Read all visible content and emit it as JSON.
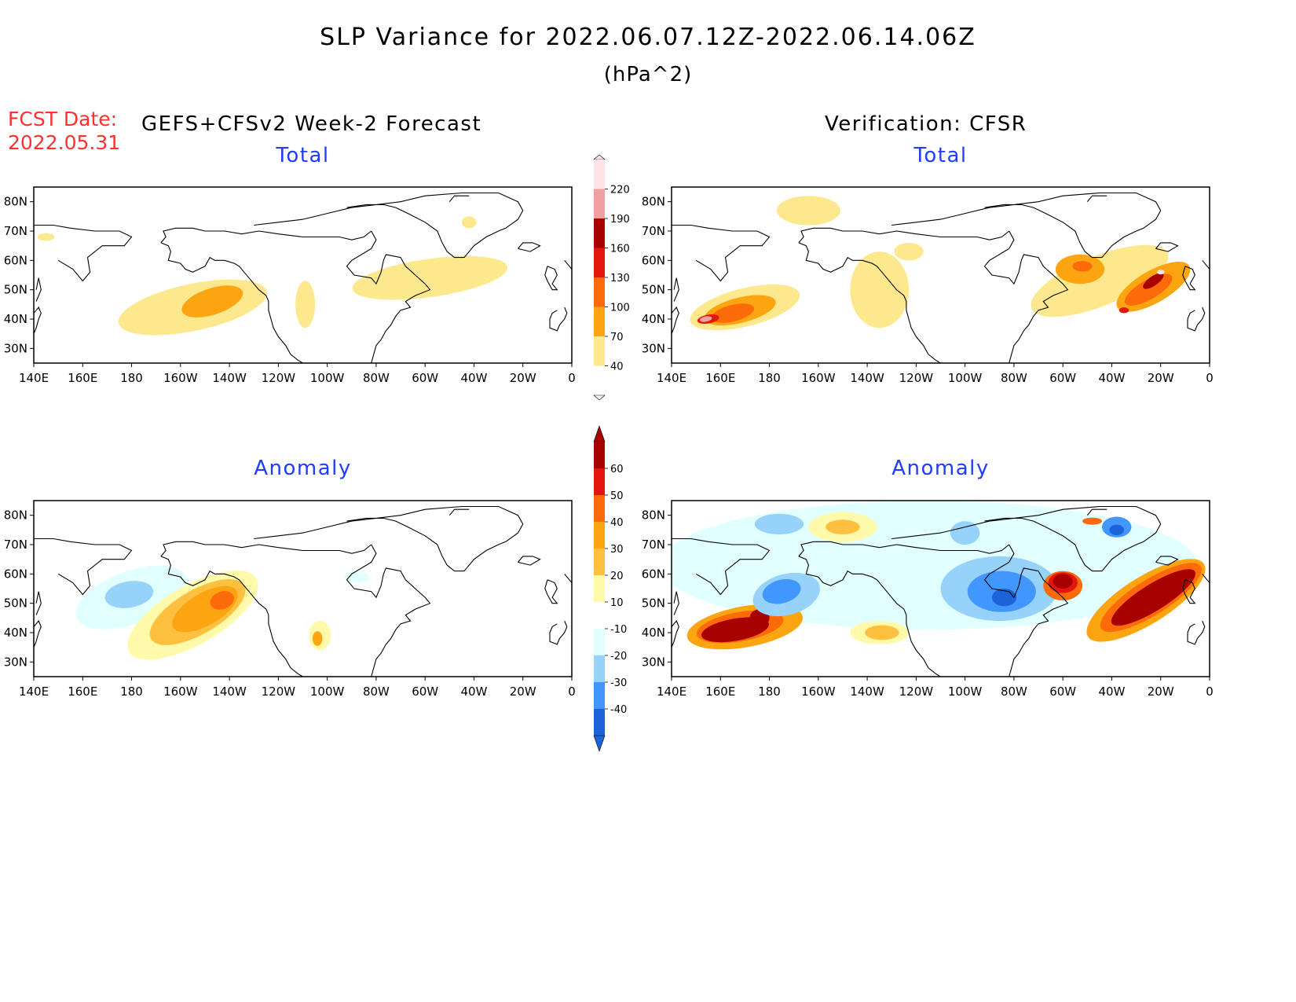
{
  "header": {
    "title": "SLP Variance for 2022.06.07.12Z-2022.06.14.06Z",
    "units": "(hPa^2)",
    "fcst_label": "FCST Date:",
    "fcst_date": "2022.05.31",
    "forecast_heading": "GEFS+CFSv2 Week-2 Forecast",
    "verification_heading": "Verification: CFSR"
  },
  "axes": {
    "lon_ticks": [
      "140E",
      "160E",
      "180",
      "160W",
      "140W",
      "120W",
      "100W",
      "80W",
      "60W",
      "40W",
      "20W",
      "0"
    ],
    "lat_ticks": [
      "80N",
      "70N",
      "60N",
      "50N",
      "40N",
      "30N"
    ],
    "lon_range_deg_east": [
      140,
      360
    ],
    "lat_range_deg": [
      25,
      85
    ]
  },
  "colors": {
    "total": [
      "#ffffff",
      "#fde88e",
      "#fda411",
      "#fc6a0a",
      "#e3160d",
      "#a80200",
      "#f0a0a0",
      "#fde3e6"
    ],
    "anomaly": [
      "#1c63d9",
      "#4196ff",
      "#96d2fa",
      "#e0fffe",
      "#ffffff",
      "#fffaaa",
      "#ffc040",
      "#fda411",
      "#fc6a0a",
      "#e3160d",
      "#a80200"
    ]
  },
  "colorbars": {
    "total_levels": [
      "40",
      "70",
      "100",
      "130",
      "160",
      "190",
      "220"
    ],
    "anomaly_levels": [
      "-40",
      "-30",
      "-20",
      "-10",
      "10",
      "20",
      "30",
      "40",
      "50",
      "60"
    ]
  },
  "panels": [
    {
      "title": "Total",
      "kind": "total",
      "blobs": [
        {
          "lon": 205,
          "lat": 44,
          "rlon": 31,
          "rlat": 8,
          "rot": -12,
          "level": 1
        },
        {
          "lon": 213,
          "lat": 46,
          "rlon": 13,
          "rlat": 4.5,
          "rot": -18,
          "level": 2
        },
        {
          "lon": 251,
          "lat": 45,
          "rlon": 4,
          "rlat": 8,
          "rot": 0,
          "level": 1
        },
        {
          "lon": 302,
          "lat": 54,
          "rlon": 32,
          "rlat": 6.5,
          "rot": -8,
          "level": 1
        },
        {
          "lon": 145,
          "lat": 68,
          "rlon": 3.5,
          "rlat": 1.3,
          "rot": 0,
          "level": 1
        },
        {
          "lon": 318,
          "lat": 73,
          "rlon": 3,
          "rlat": 2,
          "rot": 0,
          "level": 1
        }
      ]
    },
    {
      "title": "Total",
      "kind": "total",
      "blobs": [
        {
          "lon": 170,
          "lat": 44,
          "rlon": 23,
          "rlat": 6.5,
          "rot": -14,
          "level": 1
        },
        {
          "lon": 168,
          "lat": 43,
          "rlon": 15,
          "rlat": 4.3,
          "rot": -14,
          "level": 2
        },
        {
          "lon": 165,
          "lat": 42,
          "rlon": 9,
          "rlat": 2.8,
          "rot": -14,
          "level": 3
        },
        {
          "lon": 155,
          "lat": 40,
          "rlon": 4.5,
          "rlat": 1.5,
          "rot": -10,
          "level": 4
        },
        {
          "lon": 154,
          "lat": 40,
          "rlon": 2.5,
          "rlat": 0.9,
          "rot": -10,
          "level": 6
        },
        {
          "lon": 196,
          "lat": 77,
          "rlon": 13,
          "rlat": 5,
          "rot": 0,
          "level": 1
        },
        {
          "lon": 225,
          "lat": 50,
          "rlon": 12,
          "rlat": 13,
          "rot": 0,
          "level": 1
        },
        {
          "lon": 237,
          "lat": 63,
          "rlon": 6,
          "rlat": 3,
          "rot": 0,
          "level": 1
        },
        {
          "lon": 315,
          "lat": 53,
          "rlon": 30,
          "rlat": 8.5,
          "rot": -22,
          "level": 1
        },
        {
          "lon": 337,
          "lat": 51,
          "rlon": 17,
          "rlat": 5.5,
          "rot": -30,
          "level": 2
        },
        {
          "lon": 335,
          "lat": 50,
          "rlon": 11,
          "rlat": 3.3,
          "rot": -30,
          "level": 3
        },
        {
          "lon": 337,
          "lat": 53,
          "rlon": 5,
          "rlat": 1.6,
          "rot": -35,
          "level": 5
        },
        {
          "lon": 340,
          "lat": 56,
          "rlon": 1.5,
          "rlat": 0.8,
          "rot": 0,
          "level": 7
        },
        {
          "lon": 307,
          "lat": 57,
          "rlon": 10,
          "rlat": 5,
          "rot": 0,
          "level": 2
        },
        {
          "lon": 308,
          "lat": 58,
          "rlon": 4,
          "rlat": 1.8,
          "rot": 0,
          "level": 3
        },
        {
          "lon": 325,
          "lat": 43,
          "rlon": 2,
          "rlat": 1,
          "rot": 0,
          "level": 4
        }
      ]
    },
    {
      "title": "Anomaly",
      "kind": "anomaly",
      "blobs": [
        {
          "lon": 180,
          "lat": 52,
          "rlon": 24,
          "rlat": 9,
          "rot": -20,
          "level": 3
        },
        {
          "lon": 179,
          "lat": 53,
          "rlon": 10,
          "rlat": 4.5,
          "rot": -10,
          "level": 2
        },
        {
          "lon": 205,
          "lat": 46,
          "rlon": 30,
          "rlat": 10,
          "rot": -30,
          "level": 5
        },
        {
          "lon": 207,
          "lat": 47,
          "rlon": 22,
          "rlat": 7.5,
          "rot": -30,
          "level": 6
        },
        {
          "lon": 210,
          "lat": 48,
          "rlon": 15,
          "rlat": 5.5,
          "rot": -30,
          "level": 7
        },
        {
          "lon": 217,
          "lat": 51,
          "rlon": 5,
          "rlat": 3,
          "rot": -20,
          "level": 8
        },
        {
          "lon": 257,
          "lat": 39,
          "rlon": 4.5,
          "rlat": 5,
          "rot": 0,
          "level": 5
        },
        {
          "lon": 256,
          "lat": 38,
          "rlon": 2,
          "rlat": 2.5,
          "rot": 0,
          "level": 7
        },
        {
          "lon": 272,
          "lat": 59,
          "rlon": 5,
          "rlat": 2,
          "rot": 0,
          "level": 3
        }
      ]
    },
    {
      "title": "Anomaly",
      "kind": "anomaly",
      "blobs": [
        {
          "lon": 245,
          "lat": 63,
          "rlon": 110,
          "rlat": 22,
          "rot": 0,
          "level": 3
        },
        {
          "lon": 170,
          "lat": 42,
          "rlon": 24,
          "rlat": 7,
          "rot": -10,
          "level": 7
        },
        {
          "lon": 168,
          "lat": 42,
          "rlon": 18,
          "rlat": 5,
          "rot": -10,
          "level": 8
        },
        {
          "lon": 166,
          "lat": 41,
          "rlon": 14,
          "rlat": 3.8,
          "rot": -10,
          "level": 10
        },
        {
          "lon": 176,
          "lat": 45,
          "rlon": 4,
          "rlat": 3,
          "rot": 0,
          "level": 10
        },
        {
          "lon": 187,
          "lat": 53,
          "rlon": 14,
          "rlat": 7,
          "rot": -15,
          "level": 2
        },
        {
          "lon": 185,
          "lat": 54,
          "rlon": 8,
          "rlat": 4,
          "rot": -15,
          "level": 1
        },
        {
          "lon": 184,
          "lat": 77,
          "rlon": 10,
          "rlat": 3.5,
          "rot": 0,
          "level": 2
        },
        {
          "lon": 210,
          "lat": 76,
          "rlon": 14,
          "rlat": 5,
          "rot": 0,
          "level": 5
        },
        {
          "lon": 210,
          "lat": 76,
          "rlon": 7,
          "rlat": 2.5,
          "rot": 0,
          "level": 6
        },
        {
          "lon": 225,
          "lat": 40,
          "rlon": 12,
          "rlat": 4,
          "rot": 0,
          "level": 5
        },
        {
          "lon": 226,
          "lat": 40,
          "rlon": 7,
          "rlat": 2.5,
          "rot": 0,
          "level": 6
        },
        {
          "lon": 274,
          "lat": 55,
          "rlon": 24,
          "rlat": 11,
          "rot": 0,
          "level": 2
        },
        {
          "lon": 275,
          "lat": 54,
          "rlon": 14,
          "rlat": 7,
          "rot": 0,
          "level": 1
        },
        {
          "lon": 276,
          "lat": 52,
          "rlon": 5,
          "rlat": 3,
          "rot": 0,
          "level": 0
        },
        {
          "lon": 260,
          "lat": 74,
          "rlon": 6,
          "rlat": 4,
          "rot": 0,
          "level": 2
        },
        {
          "lon": 322,
          "lat": 76,
          "rlon": 6,
          "rlat": 3.5,
          "rot": 0,
          "level": 1
        },
        {
          "lon": 322,
          "lat": 75,
          "rlon": 3,
          "rlat": 1.8,
          "rot": 0,
          "level": 0
        },
        {
          "lon": 300,
          "lat": 56,
          "rlon": 8,
          "rlat": 5,
          "rot": 0,
          "level": 8
        },
        {
          "lon": 300,
          "lat": 57,
          "rlon": 6,
          "rlat": 3.5,
          "rot": 0,
          "level": 9
        },
        {
          "lon": 300,
          "lat": 57.5,
          "rlon": 4,
          "rlat": 2.5,
          "rot": 0,
          "level": 10
        },
        {
          "lon": 334,
          "lat": 51,
          "rlon": 28,
          "rlat": 8,
          "rot": -32,
          "level": 7
        },
        {
          "lon": 336,
          "lat": 52,
          "rlon": 24,
          "rlat": 6,
          "rot": -32,
          "level": 8
        },
        {
          "lon": 337,
          "lat": 52,
          "rlon": 20,
          "rlat": 4.5,
          "rot": -32,
          "level": 10
        },
        {
          "lon": 312,
          "lat": 78,
          "rlon": 4,
          "rlat": 1.2,
          "rot": 0,
          "level": 8
        }
      ]
    }
  ]
}
